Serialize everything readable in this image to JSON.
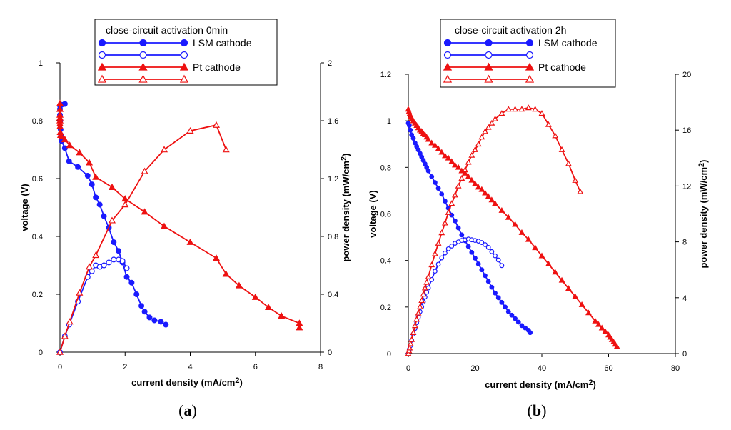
{
  "colors": {
    "lsm": "#1a1aff",
    "pt": "#ee1111"
  },
  "chart_data": [
    {
      "type": "line",
      "panel_label": "a",
      "legend_title": "close-circuit activation 0min",
      "xlabel": "current density (mA/cm",
      "xlabel_sup": "2",
      "xlabel_end": ")",
      "ylabel": "voltage (V)",
      "y2label": "power density (mW/cm",
      "y2label_sup": "2",
      "y2label_end": ")",
      "xlim": [
        0,
        8
      ],
      "ylim": [
        0,
        1
      ],
      "y2lim": [
        0,
        2
      ],
      "xticks": [
        "0",
        "2",
        "4",
        "6",
        "8"
      ],
      "yticks": [
        "0",
        "0.2",
        "0.4",
        "0.6",
        "0.8",
        "1"
      ],
      "y2ticks": [
        "0",
        "0.4",
        "0.8",
        "1.2",
        "1.6",
        "2"
      ],
      "legend": [
        {
          "label": "LSM cathode",
          "color": "lsm",
          "marker": "circle",
          "filled": true
        },
        {
          "label": "",
          "color": "lsm",
          "marker": "circle",
          "filled": false
        },
        {
          "label": "Pt cathode",
          "color": "pt",
          "marker": "triangle",
          "filled": true
        },
        {
          "label": "",
          "color": "pt",
          "marker": "triangle",
          "filled": false
        }
      ],
      "series": [
        {
          "name": "LSM cathode",
          "kind": "voltage",
          "color": "lsm",
          "marker": "circle",
          "filled": true,
          "axis": "y",
          "x": [
            0.15,
            0.05,
            0.0,
            0.0,
            0.0,
            0.01,
            0.02,
            0.03,
            0.05,
            0.15,
            0.28,
            0.55,
            0.85,
            0.98,
            1.1,
            1.22,
            1.35,
            1.5,
            1.65,
            1.8,
            1.92,
            2.05,
            2.2,
            2.35,
            2.5,
            2.6,
            2.75,
            2.9,
            3.1,
            3.25
          ],
          "y": [
            0.858,
            0.855,
            0.852,
            0.84,
            0.82,
            0.8,
            0.77,
            0.75,
            0.73,
            0.705,
            0.66,
            0.64,
            0.61,
            0.58,
            0.535,
            0.51,
            0.47,
            0.43,
            0.38,
            0.35,
            0.31,
            0.26,
            0.24,
            0.2,
            0.16,
            0.14,
            0.12,
            0.11,
            0.105,
            0.095
          ]
        },
        {
          "name": "",
          "kind": "power",
          "color": "lsm",
          "marker": "circle",
          "filled": false,
          "axis": "y2",
          "x": [
            0.0,
            0.15,
            0.28,
            0.55,
            0.85,
            0.98,
            1.1,
            1.22,
            1.35,
            1.5,
            1.65,
            1.8,
            1.92,
            2.05
          ],
          "y": [
            0.0,
            0.11,
            0.19,
            0.35,
            0.52,
            0.56,
            0.6,
            0.59,
            0.6,
            0.62,
            0.64,
            0.64,
            0.63,
            0.58
          ]
        },
        {
          "name": "Pt cathode",
          "kind": "voltage",
          "color": "pt",
          "marker": "triangle",
          "filled": true,
          "axis": "y",
          "x": [
            0.0,
            0.0,
            0.0,
            0.0,
            0.0,
            0.0,
            0.0,
            0.01,
            0.02,
            0.05,
            0.15,
            0.3,
            0.6,
            0.9,
            1.1,
            1.6,
            2.0,
            2.6,
            3.2,
            4.0,
            4.8,
            5.1,
            5.5,
            6.0,
            6.4,
            6.8,
            7.35,
            7.35
          ],
          "y": [
            0.86,
            0.84,
            0.82,
            0.81,
            0.8,
            0.79,
            0.78,
            0.76,
            0.75,
            0.745,
            0.735,
            0.715,
            0.69,
            0.655,
            0.605,
            0.57,
            0.53,
            0.485,
            0.435,
            0.38,
            0.325,
            0.27,
            0.23,
            0.19,
            0.155,
            0.125,
            0.1,
            0.085
          ]
        },
        {
          "name": "",
          "kind": "power",
          "color": "pt",
          "marker": "triangle",
          "filled": false,
          "axis": "y2",
          "x": [
            0.0,
            0.15,
            0.3,
            0.6,
            0.9,
            1.1,
            1.6,
            2.0,
            2.6,
            3.2,
            4.0,
            4.8,
            5.1
          ],
          "y": [
            0.0,
            0.11,
            0.21,
            0.41,
            0.59,
            0.67,
            0.91,
            1.02,
            1.25,
            1.4,
            1.53,
            1.57,
            1.4
          ]
        }
      ]
    },
    {
      "type": "line",
      "panel_label": "b",
      "legend_title": "close-circuit activation 2h",
      "xlabel": "current density (mA/cm",
      "xlabel_sup": "2",
      "xlabel_end": ")",
      "ylabel": "voltage (V)",
      "y2label": "power density (mW/cm",
      "y2label_sup": "2",
      "y2label_end": ")",
      "xlim": [
        0,
        80
      ],
      "ylim": [
        0,
        1.2
      ],
      "y2lim": [
        0,
        20
      ],
      "xticks": [
        "0",
        "20",
        "40",
        "60",
        "80"
      ],
      "yticks": [
        "0",
        "0.2",
        "0.4",
        "0.6",
        "0.8",
        "1",
        "1.2"
      ],
      "y2ticks": [
        "0",
        "4",
        "8",
        "12",
        "16",
        "20"
      ],
      "legend": [
        {
          "label": "LSM cathode",
          "color": "lsm",
          "marker": "circle",
          "filled": true
        },
        {
          "label": "",
          "color": "lsm",
          "marker": "circle",
          "filled": false
        },
        {
          "label": "Pt cathode",
          "color": "pt",
          "marker": "triangle",
          "filled": true
        },
        {
          "label": "",
          "color": "pt",
          "marker": "triangle",
          "filled": false
        }
      ],
      "series": [
        {
          "name": "LSM cathode",
          "kind": "voltage",
          "color": "lsm",
          "marker": "circle",
          "filled": true,
          "axis": "y",
          "x": [
            0.0,
            0.3,
            0.6,
            1.0,
            1.5,
            2.0,
            2.5,
            3.0,
            3.5,
            4.0,
            4.5,
            5.0,
            5.5,
            6.0,
            7.0,
            8.0,
            9.0,
            10.0,
            11.0,
            12.0,
            13.0,
            14.0,
            15.0,
            16.0,
            17.0,
            18.0,
            19.0,
            20.0,
            21.0,
            22.0,
            23.0,
            24.0,
            25.0,
            26.0,
            27.0,
            28.0,
            29.0,
            30.0,
            31.0,
            32.0,
            33.0,
            34.0,
            35.0,
            36.0,
            36.5
          ],
          "y": [
            0.99,
            0.98,
            0.96,
            0.94,
            0.925,
            0.905,
            0.89,
            0.875,
            0.86,
            0.845,
            0.83,
            0.815,
            0.8,
            0.785,
            0.76,
            0.735,
            0.71,
            0.685,
            0.655,
            0.625,
            0.595,
            0.57,
            0.54,
            0.51,
            0.485,
            0.46,
            0.435,
            0.41,
            0.385,
            0.36,
            0.335,
            0.31,
            0.285,
            0.26,
            0.24,
            0.22,
            0.2,
            0.18,
            0.165,
            0.15,
            0.135,
            0.12,
            0.11,
            0.1,
            0.09
          ]
        },
        {
          "name": "",
          "kind": "power",
          "color": "lsm",
          "marker": "circle",
          "filled": false,
          "axis": "y2",
          "x": [
            0.0,
            0.3,
            0.6,
            1.0,
            1.5,
            2.0,
            2.5,
            3.0,
            3.5,
            4.0,
            4.5,
            5.0,
            5.5,
            6.0,
            7.0,
            8.0,
            9.0,
            10.0,
            11.0,
            12.0,
            13.0,
            14.0,
            15.0,
            16.0,
            17.0,
            18.0,
            19.0,
            20.0,
            21.0,
            22.0,
            23.0,
            24.0,
            25.0,
            26.0,
            27.0,
            28.0
          ],
          "y": [
            0.0,
            0.3,
            0.55,
            0.95,
            1.4,
            1.8,
            2.2,
            2.6,
            3.0,
            3.35,
            3.7,
            4.05,
            4.4,
            4.7,
            5.3,
            5.9,
            6.4,
            6.85,
            7.2,
            7.5,
            7.7,
            7.9,
            8.0,
            8.1,
            8.15,
            8.2,
            8.15,
            8.1,
            8.05,
            7.95,
            7.8,
            7.6,
            7.3,
            7.0,
            6.7,
            6.3
          ]
        },
        {
          "name": "Pt cathode",
          "kind": "voltage",
          "color": "pt",
          "marker": "triangle",
          "filled": true,
          "axis": "y",
          "x": [
            0.0,
            0.2,
            0.4,
            0.7,
            1.0,
            1.5,
            2.0,
            2.5,
            3.0,
            3.5,
            4.0,
            4.5,
            5.0,
            5.5,
            6.0,
            7.0,
            8.0,
            9.0,
            10.0,
            11.0,
            12.0,
            13.0,
            14.0,
            15.0,
            16.0,
            17.0,
            18.0,
            19.0,
            20.0,
            21.0,
            22.0,
            23.0,
            24.0,
            25.0,
            26.0,
            28.0,
            30.0,
            32.0,
            34.0,
            36.0,
            38.0,
            40.0,
            42.0,
            44.0,
            46.0,
            48.0,
            50.0,
            52.0,
            54.0,
            56.0,
            57.0,
            58.0,
            59.0,
            60.0,
            60.5,
            61.0,
            61.5,
            62.0,
            62.5
          ],
          "y": [
            1.05,
            1.04,
            1.03,
            1.02,
            1.01,
            1.0,
            0.99,
            0.98,
            0.97,
            0.96,
            0.955,
            0.945,
            0.94,
            0.93,
            0.92,
            0.905,
            0.895,
            0.88,
            0.865,
            0.85,
            0.84,
            0.825,
            0.81,
            0.8,
            0.785,
            0.775,
            0.76,
            0.745,
            0.73,
            0.715,
            0.705,
            0.69,
            0.675,
            0.66,
            0.645,
            0.615,
            0.585,
            0.555,
            0.52,
            0.49,
            0.455,
            0.42,
            0.385,
            0.35,
            0.315,
            0.28,
            0.245,
            0.21,
            0.175,
            0.14,
            0.125,
            0.11,
            0.095,
            0.08,
            0.07,
            0.06,
            0.05,
            0.04,
            0.03
          ]
        },
        {
          "name": "",
          "kind": "power",
          "color": "pt",
          "marker": "triangle",
          "filled": false,
          "axis": "y2",
          "x": [
            0.0,
            0.2,
            0.4,
            0.7,
            1.0,
            1.5,
            2.0,
            2.5,
            3.0,
            3.5,
            4.0,
            4.5,
            5.0,
            5.5,
            6.0,
            7.0,
            8.0,
            9.0,
            10.0,
            11.0,
            12.0,
            13.0,
            14.0,
            15.0,
            16.0,
            17.0,
            18.0,
            19.0,
            20.0,
            21.0,
            22.0,
            23.0,
            24.0,
            25.0,
            26.0,
            28.0,
            30.0,
            32.0,
            34.0,
            36.0,
            38.0,
            40.0,
            42.0,
            44.0,
            46.0,
            48.0,
            50.0,
            51.5
          ],
          "y": [
            0.0,
            0.2,
            0.4,
            0.7,
            1.0,
            1.5,
            2.0,
            2.45,
            2.9,
            3.35,
            3.8,
            4.25,
            4.7,
            5.1,
            5.5,
            6.35,
            7.15,
            7.9,
            8.65,
            9.35,
            10.1,
            10.75,
            11.35,
            12.0,
            12.55,
            13.15,
            13.7,
            14.2,
            14.6,
            15.0,
            15.5,
            15.9,
            16.2,
            16.5,
            16.8,
            17.2,
            17.5,
            17.5,
            17.5,
            17.6,
            17.5,
            17.2,
            16.4,
            15.6,
            14.6,
            13.6,
            12.4,
            11.6
          ]
        }
      ]
    }
  ]
}
